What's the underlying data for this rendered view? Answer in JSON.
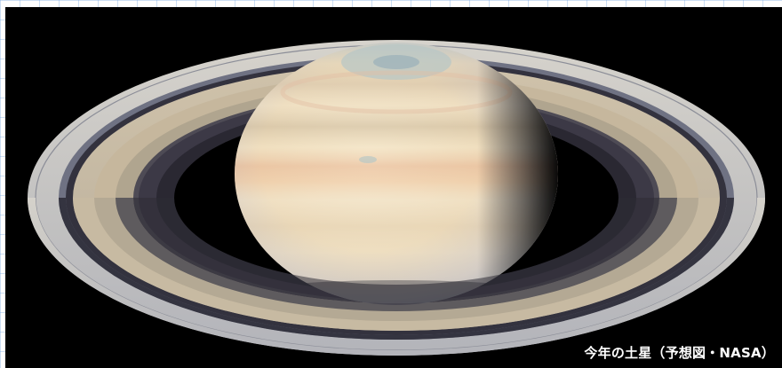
{
  "photo": {
    "subject": "saturn-photo",
    "caption": "今年の土星（予想図・NASA）"
  },
  "colors": {
    "background": "#000000",
    "grid_line": "#6ea0dc",
    "caption_text": "#ffffff"
  }
}
